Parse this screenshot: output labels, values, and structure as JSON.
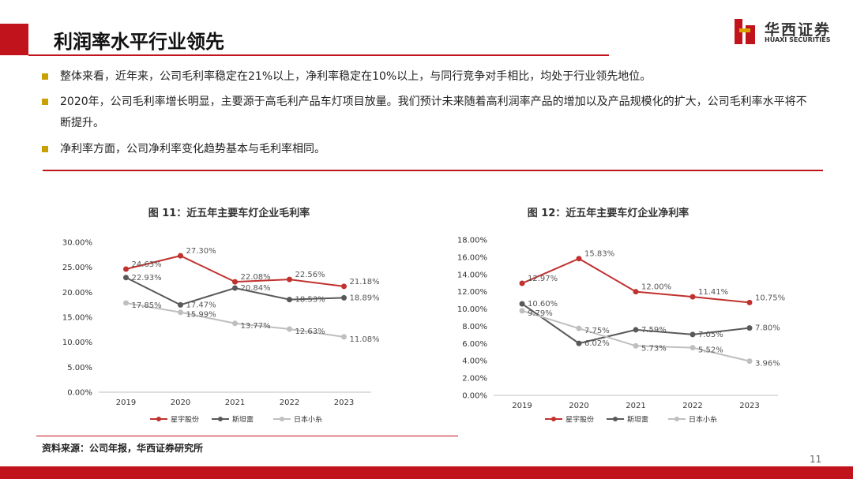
{
  "header": {
    "title": "利润率水平行业领先",
    "logo_cn": "华西证券",
    "logo_en": "HUAXI SECURITIES"
  },
  "bullets": [
    "整体来看，近年来，公司毛利率稳定在21%以上，净利率稳定在10%以上，与同行竞争对手相比，均处于行业领先地位。",
    "2020年，公司毛利率增长明显，主要源于高毛利产品车灯项目放量。我们预计未来随着高利润率产品的增加以及产品规模化的扩大，公司毛利率水平将不断提升。",
    "净利率方面，公司净利率变化趋势基本与毛利率相同。"
  ],
  "chart_data": [
    {
      "type": "line",
      "title": "图 11：近五年主要车灯企业毛利率",
      "categories": [
        "2019",
        "2020",
        "2021",
        "2022",
        "2023"
      ],
      "series": [
        {
          "name": "星宇股份",
          "color": "#c0312f",
          "values": [
            24.63,
            27.3,
            22.08,
            22.56,
            21.18
          ],
          "value_labels": [
            "24.63%",
            "27.30%",
            "22.08%",
            "22.56%",
            "21.18%"
          ]
        },
        {
          "name": "斯坦雷",
          "color": "#595959",
          "values": [
            22.93,
            17.47,
            20.84,
            18.53,
            18.89
          ],
          "value_labels": [
            "22.93%",
            "17.47%",
            "20.84%",
            "18.53%",
            "18.89%"
          ]
        },
        {
          "name": "日本小糸",
          "color": "#bfbfbf",
          "values": [
            17.85,
            15.99,
            13.77,
            12.63,
            11.08
          ],
          "value_labels": [
            "17.85%",
            "15.99%",
            "13.77%",
            "12.63%",
            "11.08%"
          ]
        }
      ],
      "ylim": [
        0,
        30
      ],
      "yticks": [
        {
          "value": 0,
          "label": "0.00%"
        },
        {
          "value": 5,
          "label": "5.00%"
        },
        {
          "value": 10,
          "label": "10.00%"
        },
        {
          "value": 15,
          "label": "15.00%"
        },
        {
          "value": 20,
          "label": "20.00%"
        },
        {
          "value": 25,
          "label": "25.00%"
        },
        {
          "value": 30,
          "label": "30.00%"
        }
      ],
      "legend": "bottom"
    },
    {
      "type": "line",
      "title": "图 12：近五年主要车灯企业净利率",
      "categories": [
        "2019",
        "2020",
        "2021",
        "2022",
        "2023"
      ],
      "series": [
        {
          "name": "星宇股份",
          "color": "#c0312f",
          "values": [
            12.97,
            15.83,
            12.0,
            11.41,
            10.75
          ],
          "value_labels": [
            "12.97%",
            "15.83%",
            "12.00%",
            "11.41%",
            "10.75%"
          ]
        },
        {
          "name": "斯坦雷",
          "color": "#595959",
          "values": [
            10.6,
            6.02,
            7.59,
            7.05,
            7.8
          ],
          "value_labels": [
            "10.60%",
            "6.02%",
            "7.59%",
            "7.05%",
            "7.80%"
          ]
        },
        {
          "name": "日本小糸",
          "color": "#bfbfbf",
          "values": [
            9.79,
            7.75,
            5.73,
            5.52,
            3.96
          ],
          "value_labels": [
            "9.79%",
            "7.75%",
            "5.73%",
            "5.52%",
            "3.96%"
          ]
        }
      ],
      "ylim": [
        0,
        18
      ],
      "yticks": [
        {
          "value": 0,
          "label": "0.00%"
        },
        {
          "value": 2,
          "label": "2.00%"
        },
        {
          "value": 4,
          "label": "4.00%"
        },
        {
          "value": 6,
          "label": "6.00%"
        },
        {
          "value": 8,
          "label": "8.00%"
        },
        {
          "value": 10,
          "label": "10.00%"
        },
        {
          "value": 12,
          "label": "12.00%"
        },
        {
          "value": 14,
          "label": "14.00%"
        },
        {
          "value": 16,
          "label": "16.00%"
        },
        {
          "value": 18,
          "label": "18.00%"
        }
      ],
      "legend": "bottom"
    }
  ],
  "source": "资料来源：公司年报，华西证券研究所",
  "page_number": "11"
}
